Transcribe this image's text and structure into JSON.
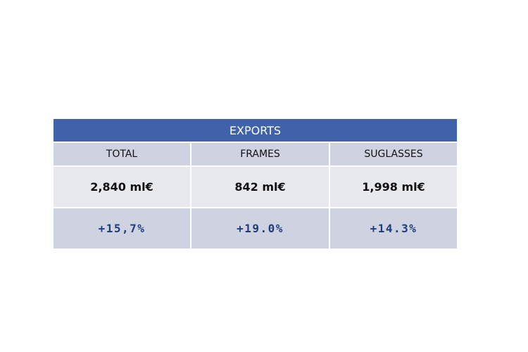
{
  "table": {
    "title": "EXPORTS",
    "header": [
      "TOTAL",
      "FRAMES",
      "SUGLASSES"
    ],
    "rows": [
      [
        "2,840 ml€",
        "842 ml€",
        "1,998 ml€"
      ],
      [
        "+15,7%",
        "+19.0%",
        "+14.3%"
      ]
    ]
  }
}
